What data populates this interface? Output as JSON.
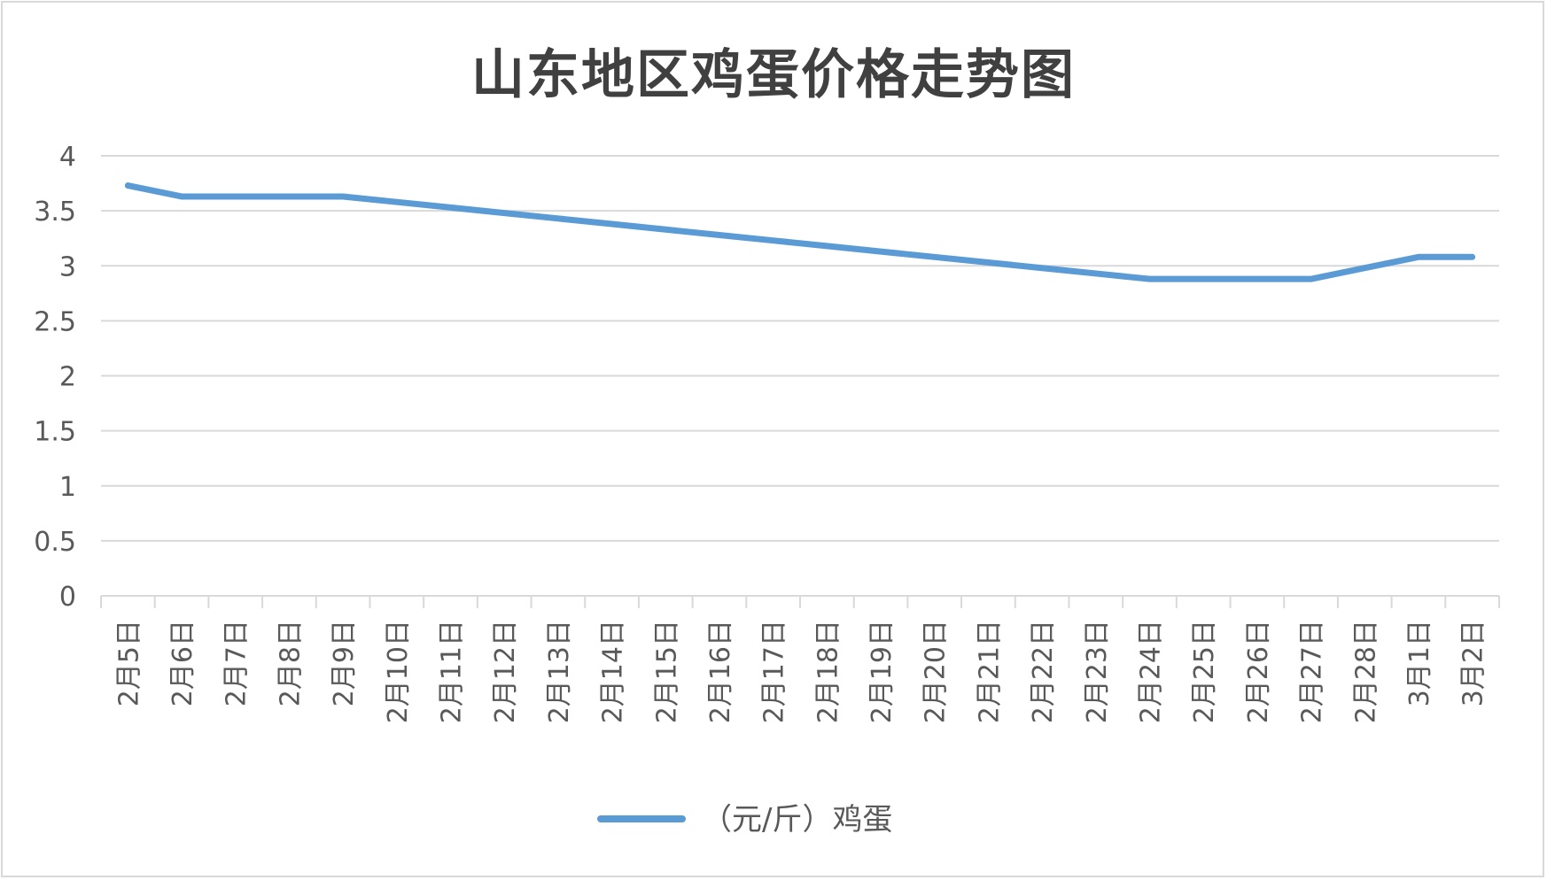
{
  "chart_data": {
    "type": "line",
    "title": "山东地区鸡蛋价格走势图",
    "xlabel": "",
    "ylabel": "",
    "ylim": [
      0,
      4
    ],
    "yticks": [
      "0",
      "0.5",
      "1",
      "1.5",
      "2",
      "2.5",
      "3",
      "3.5",
      "4"
    ],
    "grid": true,
    "legend_position": "bottom",
    "categories": [
      "2月5日",
      "2月6日",
      "2月7日",
      "2月8日",
      "2月9日",
      "2月10日",
      "2月11日",
      "2月12日",
      "2月13日",
      "2月14日",
      "2月15日",
      "2月16日",
      "2月17日",
      "2月18日",
      "2月19日",
      "2月20日",
      "2月21日",
      "2月22日",
      "2月23日",
      "2月24日",
      "2月25日",
      "2月26日",
      "2月27日",
      "2月28日",
      "3月1日",
      "3月2日"
    ],
    "series": [
      {
        "name": "（元/斤）鸡蛋",
        "color": "#5b9bd5",
        "values": [
          3.73,
          3.63,
          3.63,
          3.63,
          3.63,
          3.58,
          3.53,
          3.48,
          3.43,
          3.38,
          3.33,
          3.28,
          3.23,
          3.18,
          3.13,
          3.08,
          3.03,
          2.98,
          2.93,
          2.88,
          2.88,
          2.88,
          2.88,
          2.98,
          3.08,
          3.08
        ]
      }
    ]
  },
  "colors": {
    "line": "#5b9bd5",
    "grid": "#d9d9d9",
    "text": "#595959",
    "title": "#404040"
  }
}
